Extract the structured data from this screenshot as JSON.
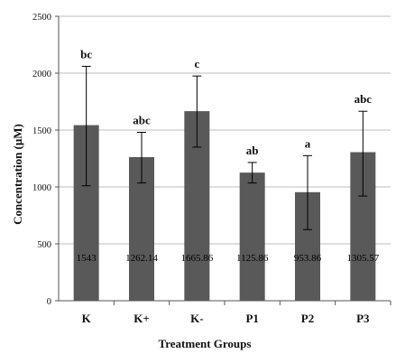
{
  "chart_data": {
    "type": "bar",
    "title": "",
    "xlabel": "Treatment Groups",
    "ylabel": "Concentration (μM)",
    "ylim": [
      0,
      2500
    ],
    "yticks": [
      0,
      500,
      1000,
      1500,
      2000,
      2500
    ],
    "grid": true,
    "legend": "none",
    "categories": [
      "K",
      "K+",
      "K-",
      "P1",
      "P2",
      "P3"
    ],
    "values": [
      1543,
      1262.14,
      1665.86,
      1125.86,
      953.86,
      1305.57
    ],
    "value_labels": [
      "1543",
      "1262.14",
      "1665.86",
      "1125.86",
      "953.86",
      "1305.57"
    ],
    "error_upper": [
      2060,
      1480,
      1975,
      1215,
      1275,
      1665
    ],
    "error_lower": [
      1010,
      1035,
      1350,
      1035,
      625,
      920
    ],
    "significance_letters": [
      "bc",
      "abc",
      "c",
      "ab",
      "a",
      "abc"
    ],
    "colors": {
      "bar": "#595959",
      "gridline": "#bdbdbd",
      "axis": "#555555",
      "error_bar": "#000000"
    }
  }
}
